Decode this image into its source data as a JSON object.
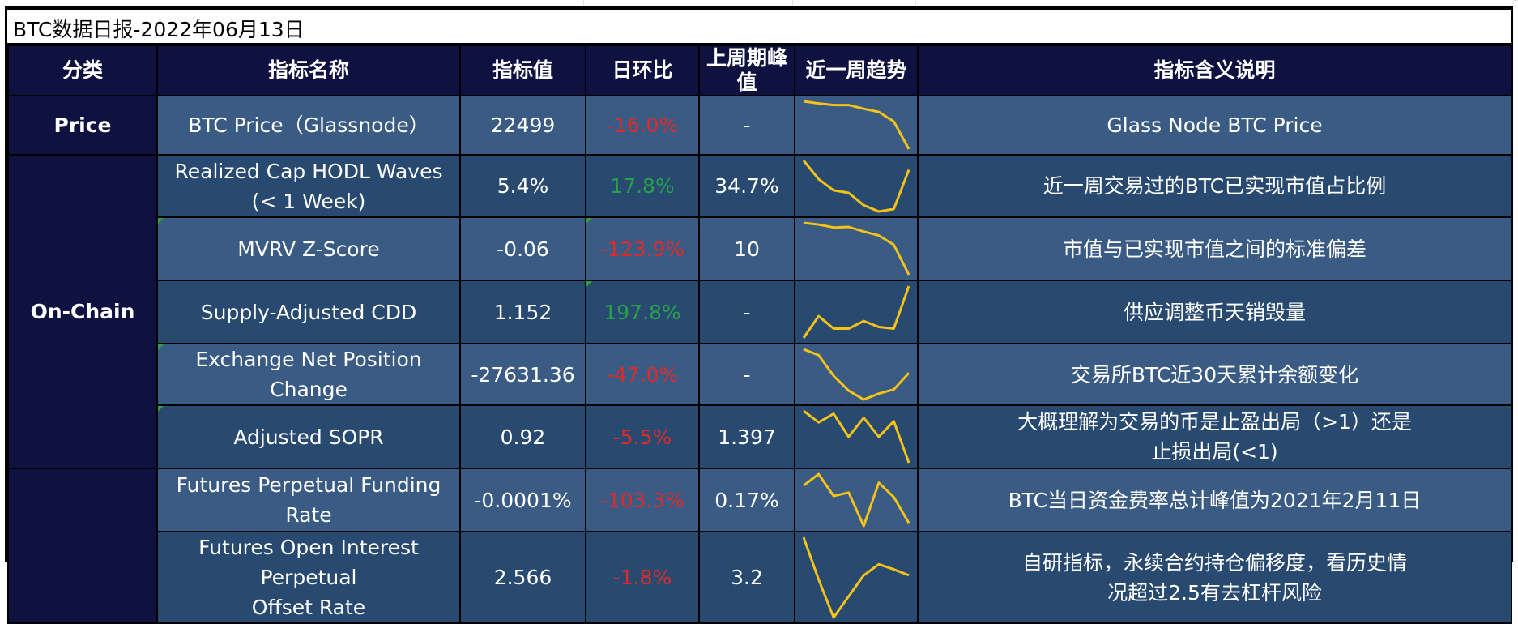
{
  "title": "BTC数据日报-2022年06月13日",
  "headers": [
    "分类",
    "指标名称",
    "指标值",
    "日环比",
    "上周期峰值",
    "近一周趋势",
    "指标含义说明"
  ],
  "categories": [
    "Price",
    "On-Chain",
    ""
  ],
  "colors": {
    "header_bg": "#0f1140",
    "row_light": "#3a5b83",
    "row_dark": "#284970",
    "negative": "#e02a2a",
    "positive": "#27a24a",
    "sparkline": "#f5c217"
  },
  "rows": [
    {
      "name": "BTC Price（Glassnode）",
      "name_line2": "",
      "value": "22499",
      "change": "-16.0%",
      "change_sign": "negative",
      "peak": "-",
      "desc": "Glass Node BTC Price",
      "desc_line2": "",
      "trend": [
        100,
        96,
        93,
        93,
        86,
        80,
        62,
        10
      ]
    },
    {
      "name": "Realized Cap HODL Waves",
      "name_line2": "(< 1 Week)",
      "value": "5.4%",
      "change": "17.8%",
      "change_sign": "positive",
      "peak": "34.7%",
      "desc": "近一周交易过的BTC已实现市值占比例",
      "desc_line2": "",
      "trend": [
        100,
        70,
        52,
        48,
        28,
        18,
        22,
        85
      ]
    },
    {
      "name": "MVRV Z-Score",
      "name_line2": "",
      "value": "-0.06",
      "change": "-123.9%",
      "change_sign": "negative",
      "peak": "10",
      "desc": "市值与已实现市值之间的标准偏差",
      "desc_line2": "",
      "trend": [
        100,
        97,
        92,
        93,
        85,
        78,
        62,
        10
      ]
    },
    {
      "name": "Supply-Adjusted CDD",
      "name_line2": "",
      "value": "1.152",
      "change": "197.8%",
      "change_sign": "positive",
      "peak": "-",
      "desc": "供应调整币天销毁量",
      "desc_line2": "",
      "trend": [
        5,
        45,
        22,
        22,
        36,
        25,
        22,
        100
      ]
    },
    {
      "name": "Exchange Net Position Change",
      "name_line2": "",
      "value": "-27631.36",
      "change": "-47.0%",
      "change_sign": "negative",
      "peak": "-",
      "desc": "交易所BTC近30天累计余额变化",
      "desc_line2": "",
      "trend": [
        100,
        90,
        55,
        30,
        15,
        25,
        32,
        60
      ]
    },
    {
      "name": "Adjusted SOPR",
      "name_line2": "",
      "value": "0.92",
      "change": "-5.5%",
      "change_sign": "negative",
      "peak": "1.397",
      "desc": "大概理解为交易的币是止盈出局（>1）还是",
      "desc_line2": "止损出局(<1)",
      "trend": [
        100,
        80,
        95,
        55,
        88,
        55,
        82,
        10
      ]
    },
    {
      "name": "Futures Perpetual Funding Rate",
      "name_line2": "",
      "value": "-0.0001%",
      "change": "-103.3%",
      "change_sign": "negative",
      "peak": "0.17%",
      "desc": "BTC当日资金费率总计峰值为2021年2月11日",
      "desc_line2": "",
      "trend": [
        80,
        100,
        62,
        68,
        10,
        85,
        60,
        15
      ]
    },
    {
      "name": "Futures Open Interest Perpetual",
      "name_line2": "Offset Rate",
      "value": "2.566",
      "change": "-1.8%",
      "change_sign": "negative",
      "peak": "3.2",
      "desc": "自研指标，永续合约持仓偏移度，看历史情",
      "desc_line2": "况超过2.5有去杠杆风险",
      "trend": [
        100,
        50,
        5,
        30,
        55,
        68,
        62,
        55
      ]
    }
  ]
}
